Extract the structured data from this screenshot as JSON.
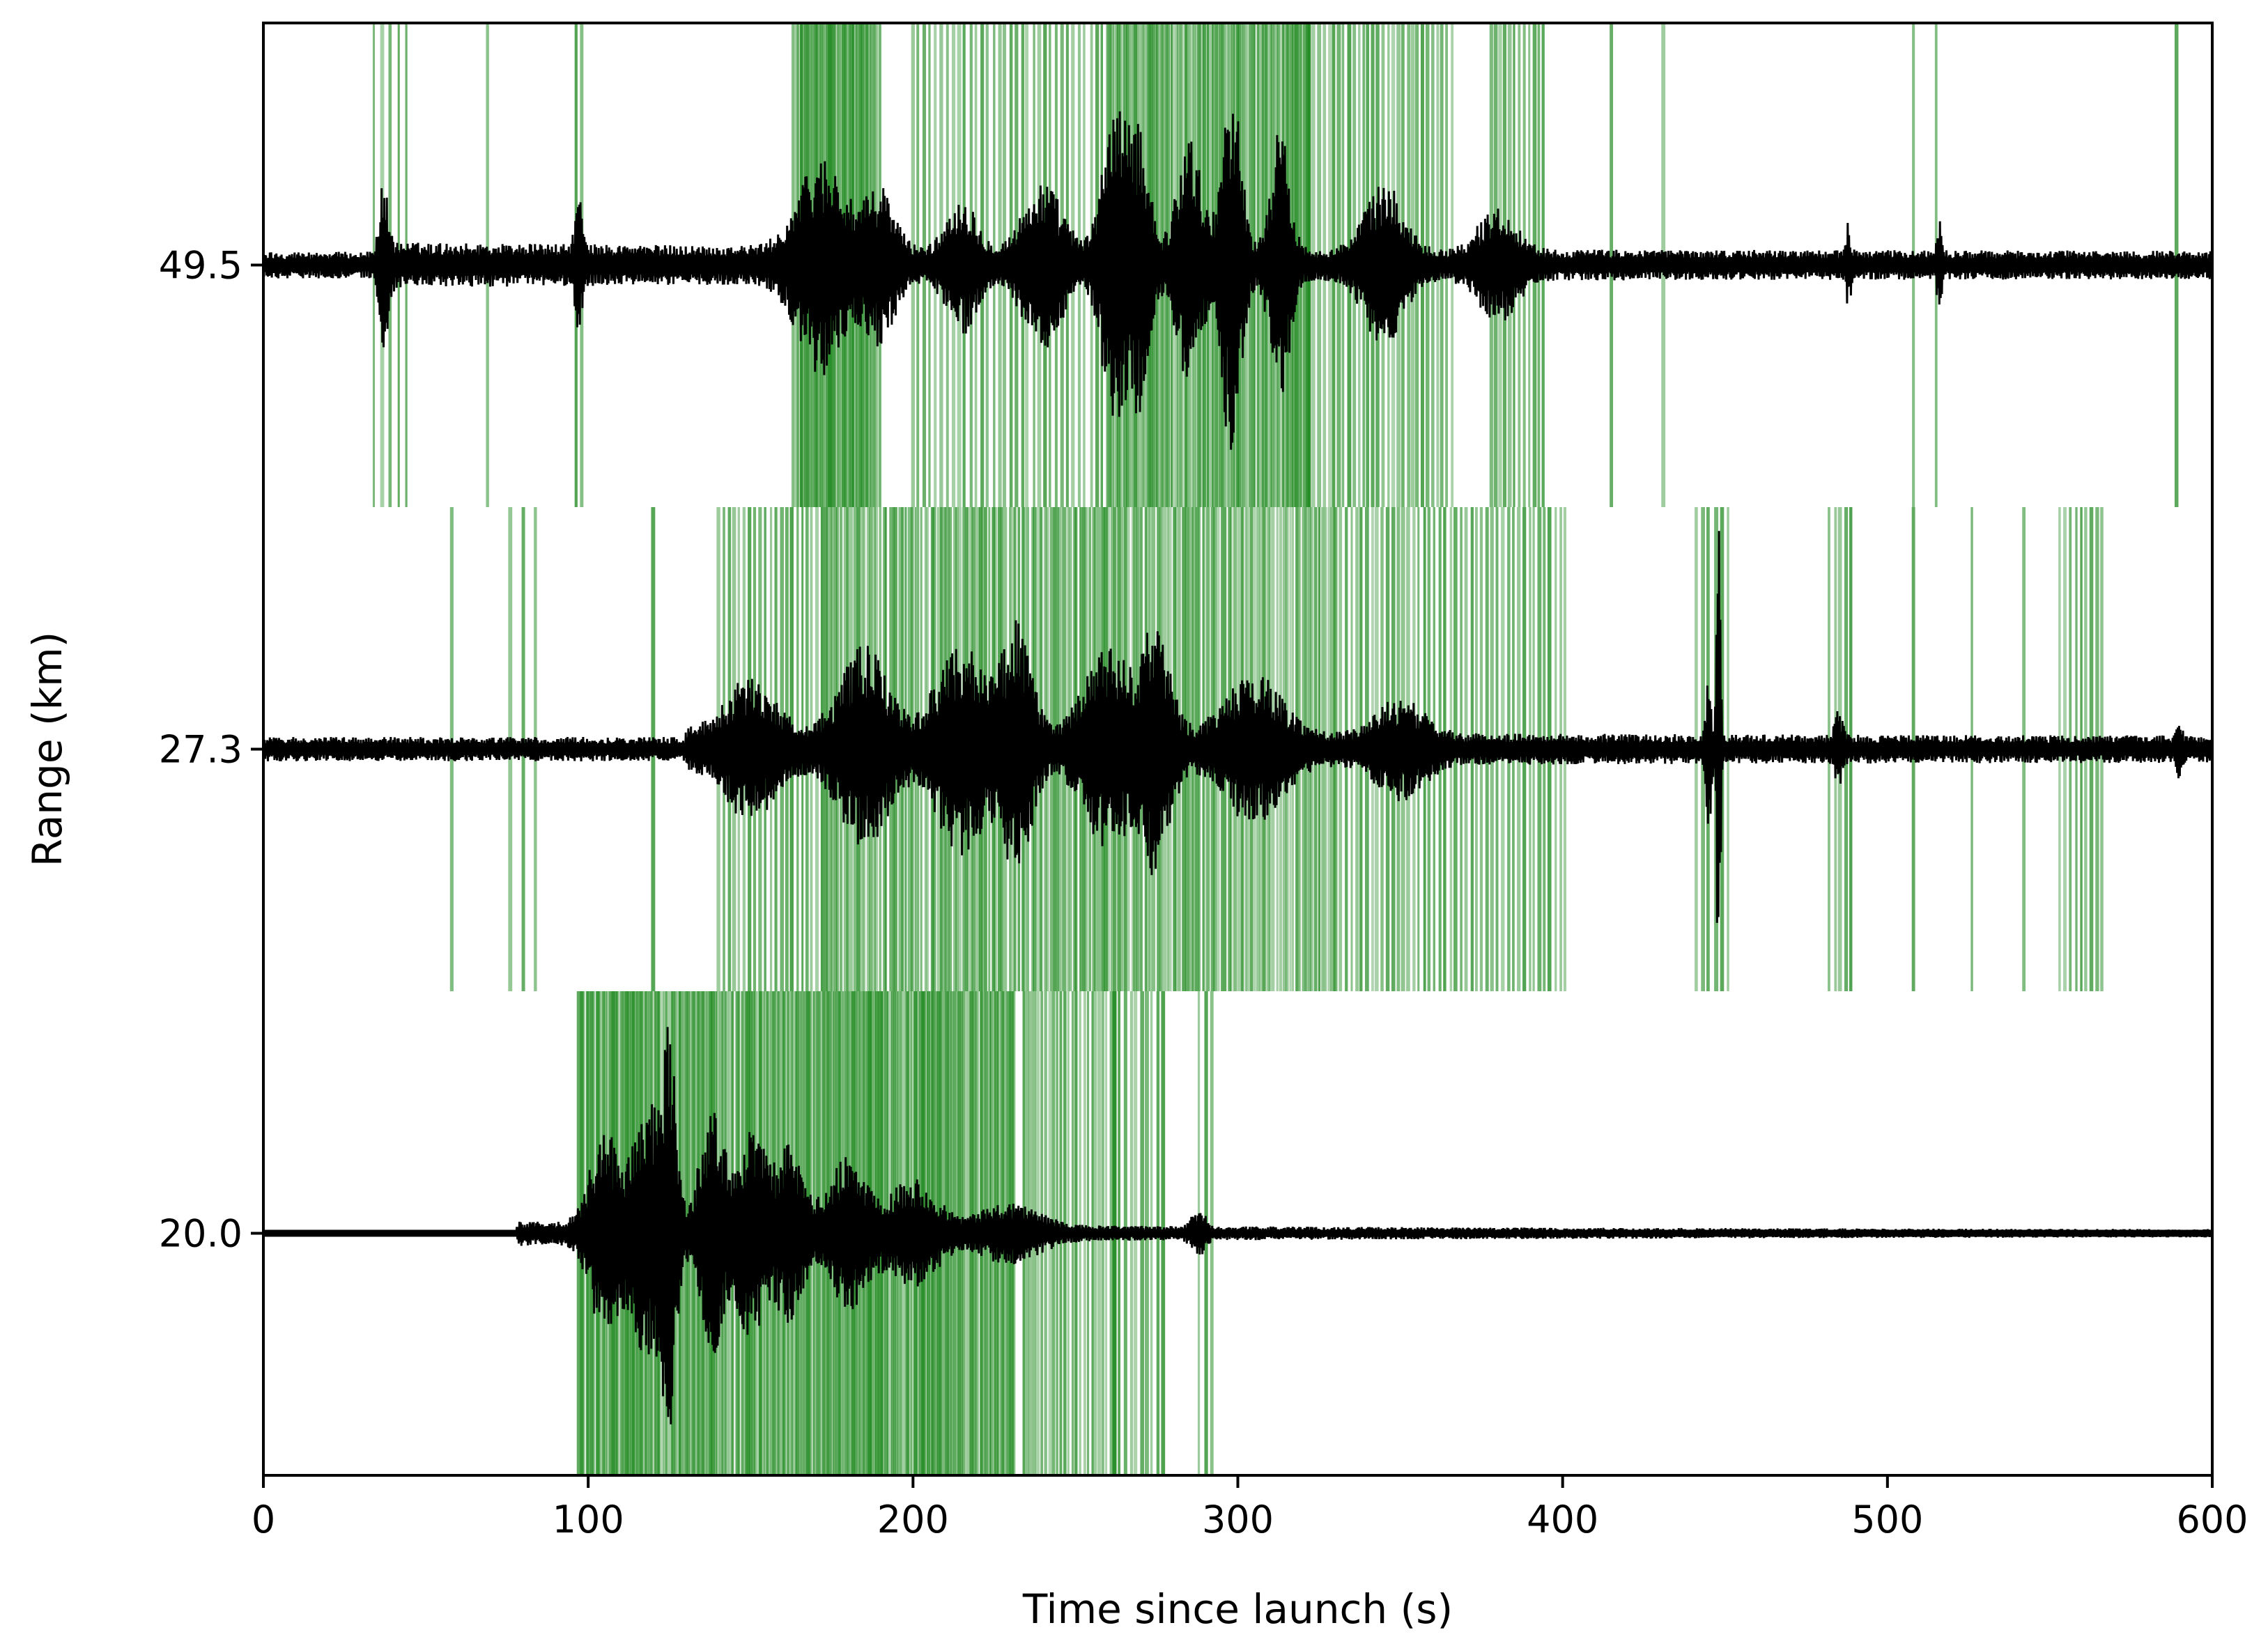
{
  "chart_data": {
    "type": "line",
    "xlabel": "Time since launch (s)",
    "ylabel": "Range (km)",
    "xlim": [
      0,
      600
    ],
    "x_ticks": [
      0,
      100,
      200,
      300,
      400,
      500,
      600
    ],
    "y_tick_labels": [
      "20.0",
      "27.3",
      "49.5"
    ],
    "grid": false,
    "colors": {
      "trace": "#000000",
      "detection": "#228b22",
      "frame": "#000000"
    },
    "series": [
      {
        "range_label": "49.5",
        "onset": 35,
        "bursts": [
          {
            "t": 37,
            "amp": 0.25,
            "width": 2
          },
          {
            "t": 97,
            "amp": 0.22,
            "width": 1.5
          },
          {
            "t": 172,
            "amp": 0.38,
            "width": 10
          },
          {
            "t": 190,
            "amp": 0.25,
            "width": 6
          },
          {
            "t": 215,
            "amp": 0.22,
            "width": 6
          },
          {
            "t": 240,
            "amp": 0.28,
            "width": 8
          },
          {
            "t": 262,
            "amp": 0.62,
            "width": 5
          },
          {
            "t": 270,
            "amp": 0.5,
            "width": 4
          },
          {
            "t": 285,
            "amp": 0.48,
            "width": 5
          },
          {
            "t": 298,
            "amp": 0.72,
            "width": 4
          },
          {
            "t": 313,
            "amp": 0.5,
            "width": 4
          },
          {
            "t": 345,
            "amp": 0.28,
            "width": 8
          },
          {
            "t": 380,
            "amp": 0.18,
            "width": 8
          },
          {
            "t": 488,
            "amp": 0.12,
            "width": 1
          },
          {
            "t": 516,
            "amp": 0.14,
            "width": 1
          }
        ],
        "base_noise": 0.055,
        "detection_clusters": [
          {
            "start": 34,
            "end": 44,
            "n": 5
          },
          {
            "start": 69,
            "end": 70,
            "n": 1
          },
          {
            "start": 96,
            "end": 98,
            "n": 2
          },
          {
            "start": 163,
            "end": 190,
            "n": 50
          },
          {
            "start": 200,
            "end": 260,
            "n": 35
          },
          {
            "start": 260,
            "end": 322,
            "n": 90
          },
          {
            "start": 322,
            "end": 366,
            "n": 30
          },
          {
            "start": 378,
            "end": 394,
            "n": 12
          },
          {
            "start": 415,
            "end": 416,
            "n": 1
          },
          {
            "start": 431,
            "end": 432,
            "n": 1
          },
          {
            "start": 508,
            "end": 509,
            "n": 1
          },
          {
            "start": 515,
            "end": 516,
            "n": 1
          },
          {
            "start": 589,
            "end": 590,
            "n": 1
          }
        ]
      },
      {
        "range_label": "27.3",
        "onset": 130,
        "bursts": [
          {
            "t": 150,
            "amp": 0.22,
            "width": 10
          },
          {
            "t": 185,
            "amp": 0.35,
            "width": 10
          },
          {
            "t": 215,
            "amp": 0.38,
            "width": 10
          },
          {
            "t": 232,
            "amp": 0.45,
            "width": 6
          },
          {
            "t": 260,
            "amp": 0.35,
            "width": 10
          },
          {
            "t": 275,
            "amp": 0.42,
            "width": 6
          },
          {
            "t": 305,
            "amp": 0.25,
            "width": 12
          },
          {
            "t": 350,
            "amp": 0.15,
            "width": 10
          },
          {
            "t": 445,
            "amp": 0.3,
            "width": 1
          },
          {
            "t": 448,
            "amp": 0.95,
            "width": 0.8
          },
          {
            "t": 485,
            "amp": 0.12,
            "width": 1.5
          },
          {
            "t": 590,
            "amp": 0.09,
            "width": 1
          }
        ],
        "base_noise": 0.05,
        "detection_clusters": [
          {
            "start": 58,
            "end": 59,
            "n": 1
          },
          {
            "start": 76,
            "end": 84,
            "n": 3
          },
          {
            "start": 120,
            "end": 121,
            "n": 1
          },
          {
            "start": 140,
            "end": 158,
            "n": 12
          },
          {
            "start": 158,
            "end": 172,
            "n": 10
          },
          {
            "start": 172,
            "end": 330,
            "n": 160
          },
          {
            "start": 330,
            "end": 401,
            "n": 45
          },
          {
            "start": 441,
            "end": 451,
            "n": 6
          },
          {
            "start": 482,
            "end": 489,
            "n": 5
          },
          {
            "start": 508,
            "end": 509,
            "n": 1
          },
          {
            "start": 526,
            "end": 527,
            "n": 1
          },
          {
            "start": 542,
            "end": 543,
            "n": 1
          },
          {
            "start": 553,
            "end": 566,
            "n": 9
          }
        ]
      },
      {
        "range_label": "20.0",
        "onset": 78,
        "bursts": [
          {
            "t": 105,
            "amp": 0.38,
            "width": 6
          },
          {
            "t": 118,
            "amp": 0.5,
            "width": 6
          },
          {
            "t": 125,
            "amp": 0.68,
            "width": 3
          },
          {
            "t": 138,
            "amp": 0.48,
            "width": 5
          },
          {
            "t": 150,
            "amp": 0.4,
            "width": 6
          },
          {
            "t": 162,
            "amp": 0.32,
            "width": 6
          },
          {
            "t": 180,
            "amp": 0.28,
            "width": 8
          },
          {
            "t": 200,
            "amp": 0.2,
            "width": 10
          },
          {
            "t": 230,
            "amp": 0.1,
            "width": 12
          },
          {
            "t": 288,
            "amp": 0.07,
            "width": 3
          }
        ],
        "base_noise": 0.012,
        "detection_clusters": [
          {
            "start": 97,
            "end": 231,
            "n": 220
          },
          {
            "start": 234,
            "end": 262,
            "n": 25
          },
          {
            "start": 262,
            "end": 277,
            "n": 10
          },
          {
            "start": 288,
            "end": 292,
            "n": 3
          }
        ]
      }
    ]
  }
}
